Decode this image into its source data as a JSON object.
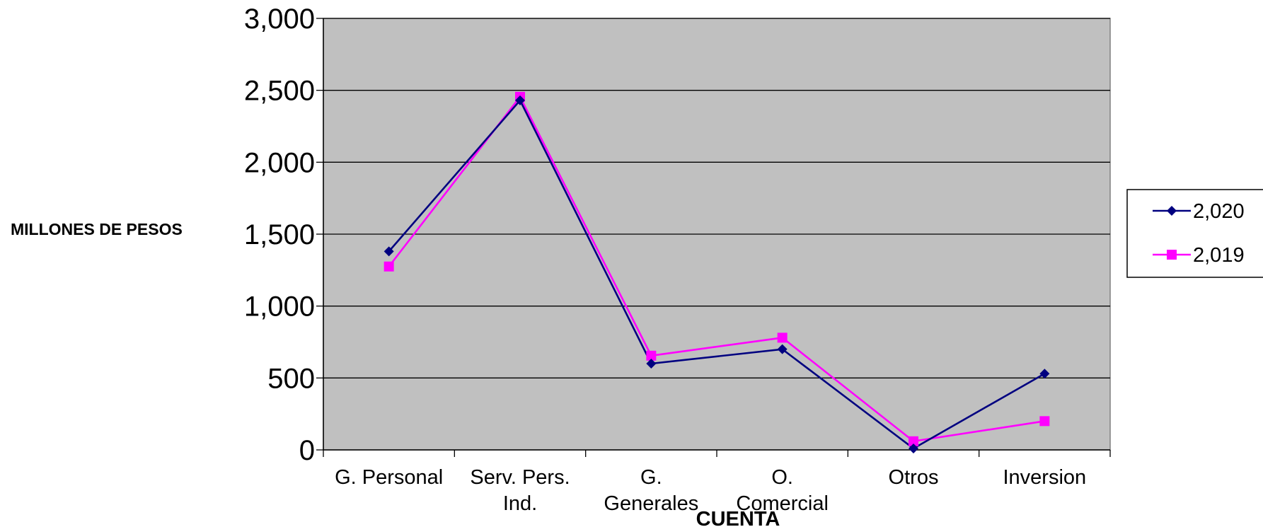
{
  "chart_data": {
    "type": "line",
    "title": "",
    "xlabel": "CUENTA",
    "ylabel": "MILLONES DE PESOS",
    "categories": [
      [
        "G. Personal"
      ],
      [
        "Serv. Pers.",
        "Ind."
      ],
      [
        "G.",
        "Generales"
      ],
      [
        "O.",
        "Comercial"
      ],
      [
        "Otros"
      ],
      [
        "Inversion"
      ]
    ],
    "ylim": [
      0,
      3000
    ],
    "yticks": [
      0,
      500,
      1000,
      1500,
      2000,
      2500,
      3000
    ],
    "ytick_labels": [
      "0",
      "500",
      "1,000",
      "1,500",
      "2,000",
      "2,500",
      "3,000"
    ],
    "grid": true,
    "legend_position": "right",
    "series": [
      {
        "name": "2,020",
        "color": "#000080",
        "marker": "diamond",
        "values": [
          1380,
          2430,
          600,
          700,
          10,
          530
        ]
      },
      {
        "name": "2,019",
        "color": "#FF00FF",
        "marker": "square",
        "values": [
          1275,
          2455,
          655,
          780,
          60,
          200
        ]
      }
    ],
    "plot_background": "#C0C0C0"
  }
}
